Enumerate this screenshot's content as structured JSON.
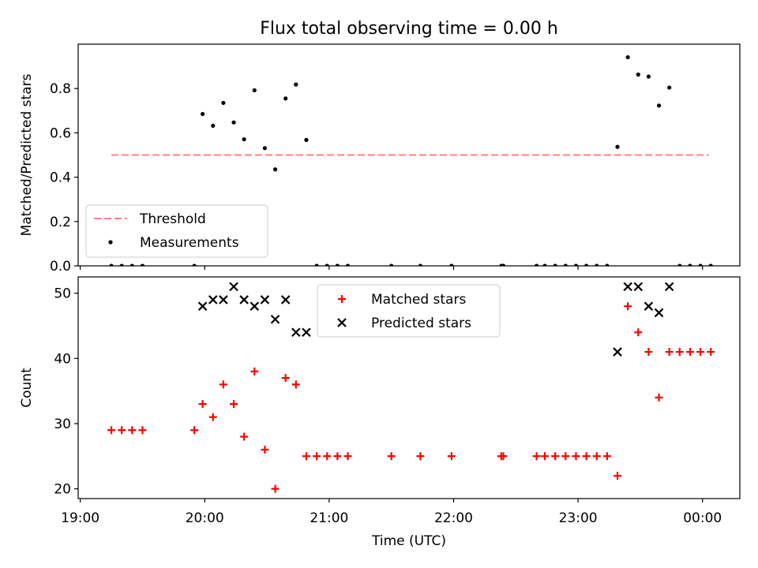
{
  "chart_data": [
    {
      "type": "scatter",
      "title": "Flux total observing time = 0.00 h",
      "xlabel": "",
      "ylabel": "Matched/Predicted stars",
      "xlim": [
        "18:59",
        "00:18"
      ],
      "ylim": [
        0,
        1.0
      ],
      "yticks": [
        0.0,
        0.2,
        0.4,
        0.6,
        0.8
      ],
      "ytick_labels": [
        "0.0",
        "0.2",
        "0.4",
        "0.6",
        "0.8"
      ],
      "xticks": [
        "19:00",
        "20:00",
        "21:00",
        "22:00",
        "23:00",
        "00:00"
      ],
      "legend": {
        "placement": "lower-left",
        "entries": [
          "Threshold",
          "Measurements"
        ]
      },
      "threshold": {
        "name": "Threshold",
        "y": 0.5,
        "x_start": "19:15",
        "x_end": "00:03",
        "color": "#ff8080"
      },
      "series": [
        {
          "name": "Measurements",
          "color": "#000000",
          "points": [
            [
              "19:15",
              0.0
            ],
            [
              "19:20",
              0.0
            ],
            [
              "19:25",
              0.0
            ],
            [
              "19:30",
              0.0
            ],
            [
              "19:55",
              0.0
            ],
            [
              "19:59",
              0.685
            ],
            [
              "20:04",
              0.632
            ],
            [
              "20:09",
              0.735
            ],
            [
              "20:14",
              0.647
            ],
            [
              "20:19",
              0.571
            ],
            [
              "20:24",
              0.792
            ],
            [
              "20:29",
              0.531
            ],
            [
              "20:34",
              0.435
            ],
            [
              "20:39",
              0.755
            ],
            [
              "20:44",
              0.818
            ],
            [
              "20:49",
              0.568
            ],
            [
              "20:54",
              0.0
            ],
            [
              "20:59",
              0.0
            ],
            [
              "21:04",
              0.0
            ],
            [
              "21:09",
              0.0
            ],
            [
              "21:30",
              0.0
            ],
            [
              "21:44",
              0.0
            ],
            [
              "21:59",
              0.0
            ],
            [
              "22:23",
              0.0
            ],
            [
              "22:24",
              0.0
            ],
            [
              "22:40",
              0.0
            ],
            [
              "22:44",
              0.0
            ],
            [
              "22:49",
              0.0
            ],
            [
              "22:54",
              0.0
            ],
            [
              "22:59",
              0.0
            ],
            [
              "23:04",
              0.0
            ],
            [
              "23:09",
              0.0
            ],
            [
              "23:14",
              0.0
            ],
            [
              "23:19",
              0.537
            ],
            [
              "23:24",
              0.941
            ],
            [
              "23:29",
              0.863
            ],
            [
              "23:34",
              0.854
            ],
            [
              "23:39",
              0.723
            ],
            [
              "23:44",
              0.804
            ],
            [
              "23:49",
              0.0
            ],
            [
              "23:54",
              0.0
            ],
            [
              "23:59",
              0.0
            ],
            [
              "00:04",
              0.0
            ]
          ]
        }
      ]
    },
    {
      "type": "scatter",
      "title": "",
      "xlabel": "Time (UTC)",
      "ylabel": "Count",
      "xlim": [
        "18:59",
        "00:18"
      ],
      "ylim": [
        18.5,
        52.5
      ],
      "yticks": [
        20,
        30,
        40,
        50
      ],
      "ytick_labels": [
        "20",
        "30",
        "40",
        "50"
      ],
      "xticks": [
        "19:00",
        "20:00",
        "21:00",
        "22:00",
        "23:00",
        "00:00"
      ],
      "legend": {
        "placement": "upper-center",
        "entries": [
          "Matched stars",
          "Predicted stars"
        ]
      },
      "series": [
        {
          "name": "Matched stars",
          "marker": "plus",
          "color": "#ff0000",
          "points": [
            [
              "19:15",
              29
            ],
            [
              "19:20",
              29
            ],
            [
              "19:25",
              29
            ],
            [
              "19:30",
              29
            ],
            [
              "19:55",
              29
            ],
            [
              "19:59",
              33
            ],
            [
              "20:04",
              31
            ],
            [
              "20:09",
              36
            ],
            [
              "20:14",
              33
            ],
            [
              "20:19",
              28
            ],
            [
              "20:24",
              38
            ],
            [
              "20:29",
              26
            ],
            [
              "20:34",
              20
            ],
            [
              "20:39",
              37
            ],
            [
              "20:44",
              36
            ],
            [
              "20:49",
              25
            ],
            [
              "20:54",
              25
            ],
            [
              "20:59",
              25
            ],
            [
              "21:04",
              25
            ],
            [
              "21:09",
              25
            ],
            [
              "21:30",
              25
            ],
            [
              "21:44",
              25
            ],
            [
              "21:59",
              25
            ],
            [
              "22:23",
              25
            ],
            [
              "22:24",
              25
            ],
            [
              "22:40",
              25
            ],
            [
              "22:44",
              25
            ],
            [
              "22:49",
              25
            ],
            [
              "22:54",
              25
            ],
            [
              "22:59",
              25
            ],
            [
              "23:04",
              25
            ],
            [
              "23:09",
              25
            ],
            [
              "23:14",
              25
            ],
            [
              "23:19",
              22
            ],
            [
              "23:24",
              48
            ],
            [
              "23:29",
              44
            ],
            [
              "23:34",
              41
            ],
            [
              "23:39",
              34
            ],
            [
              "23:44",
              41
            ],
            [
              "23:49",
              41
            ],
            [
              "23:54",
              41
            ],
            [
              "23:59",
              41
            ],
            [
              "00:04",
              41
            ]
          ]
        },
        {
          "name": "Predicted stars",
          "marker": "x",
          "color": "#000000",
          "points": [
            [
              "19:59",
              48
            ],
            [
              "20:04",
              49
            ],
            [
              "20:09",
              49
            ],
            [
              "20:14",
              51
            ],
            [
              "20:19",
              49
            ],
            [
              "20:24",
              48
            ],
            [
              "20:29",
              49
            ],
            [
              "20:34",
              46
            ],
            [
              "20:39",
              49
            ],
            [
              "20:44",
              44
            ],
            [
              "20:49",
              44
            ],
            [
              "23:19",
              41
            ],
            [
              "23:24",
              51
            ],
            [
              "23:29",
              51
            ],
            [
              "23:34",
              48
            ],
            [
              "23:39",
              47
            ],
            [
              "23:44",
              51
            ]
          ]
        }
      ]
    }
  ]
}
